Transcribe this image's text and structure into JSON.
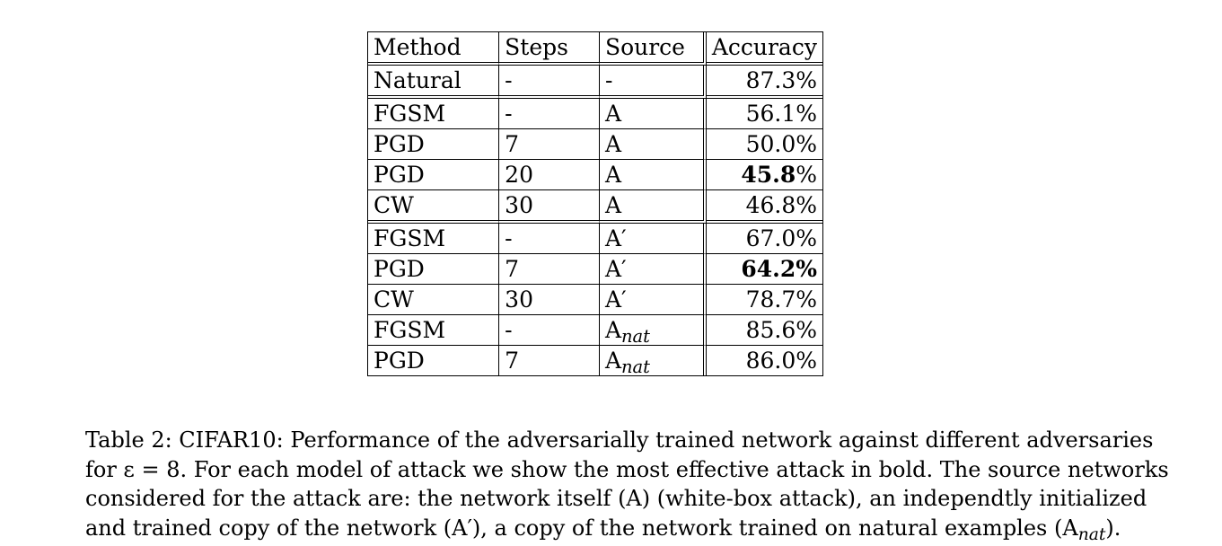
{
  "table": {
    "headers": [
      "Method",
      "Steps",
      "Source",
      "Accuracy"
    ],
    "rows": [
      {
        "method": "Natural",
        "steps": "-",
        "source": "-",
        "source_sub": "",
        "accuracy_bold": "",
        "accuracy_rest": "87.3%"
      },
      {
        "method": "FGSM",
        "steps": "-",
        "source": "A",
        "source_sub": "",
        "accuracy_bold": "",
        "accuracy_rest": "56.1%"
      },
      {
        "method": "PGD",
        "steps": "7",
        "source": "A",
        "source_sub": "",
        "accuracy_bold": "",
        "accuracy_rest": "50.0%"
      },
      {
        "method": "PGD",
        "steps": "20",
        "source": "A",
        "source_sub": "",
        "accuracy_bold": "45.8",
        "accuracy_rest": "%"
      },
      {
        "method": "CW",
        "steps": "30",
        "source": "A",
        "source_sub": "",
        "accuracy_bold": "",
        "accuracy_rest": "46.8%"
      },
      {
        "method": "FGSM",
        "steps": "-",
        "source": "A′",
        "source_sub": "",
        "accuracy_bold": "",
        "accuracy_rest": "67.0%"
      },
      {
        "method": "PGD",
        "steps": "7",
        "source": "A′",
        "source_sub": "",
        "accuracy_bold": "64.2%",
        "accuracy_rest": ""
      },
      {
        "method": "CW",
        "steps": "30",
        "source": "A′",
        "source_sub": "",
        "accuracy_bold": "",
        "accuracy_rest": "78.7%"
      },
      {
        "method": "FGSM",
        "steps": "-",
        "source": "A",
        "source_sub": "nat",
        "accuracy_bold": "",
        "accuracy_rest": "85.6%"
      },
      {
        "method": "PGD",
        "steps": "7",
        "source": "A",
        "source_sub": "nat",
        "accuracy_bold": "",
        "accuracy_rest": "86.0%"
      }
    ]
  },
  "caption": {
    "line1": "Table 2: CIFAR10: Performance of the adversarially trained network against different adversaries",
    "line2": "for ε = 8. For each model of attack we show the most effective attack in bold. The source networks",
    "line3": "considered for the attack are: the network itself (A) (white-box attack), an independtly initialized",
    "line4_pre": "and trained copy of the network (A′), a copy of the network trained on natural examples (A",
    "line4_sub": "nat",
    "line4_post": ")."
  }
}
